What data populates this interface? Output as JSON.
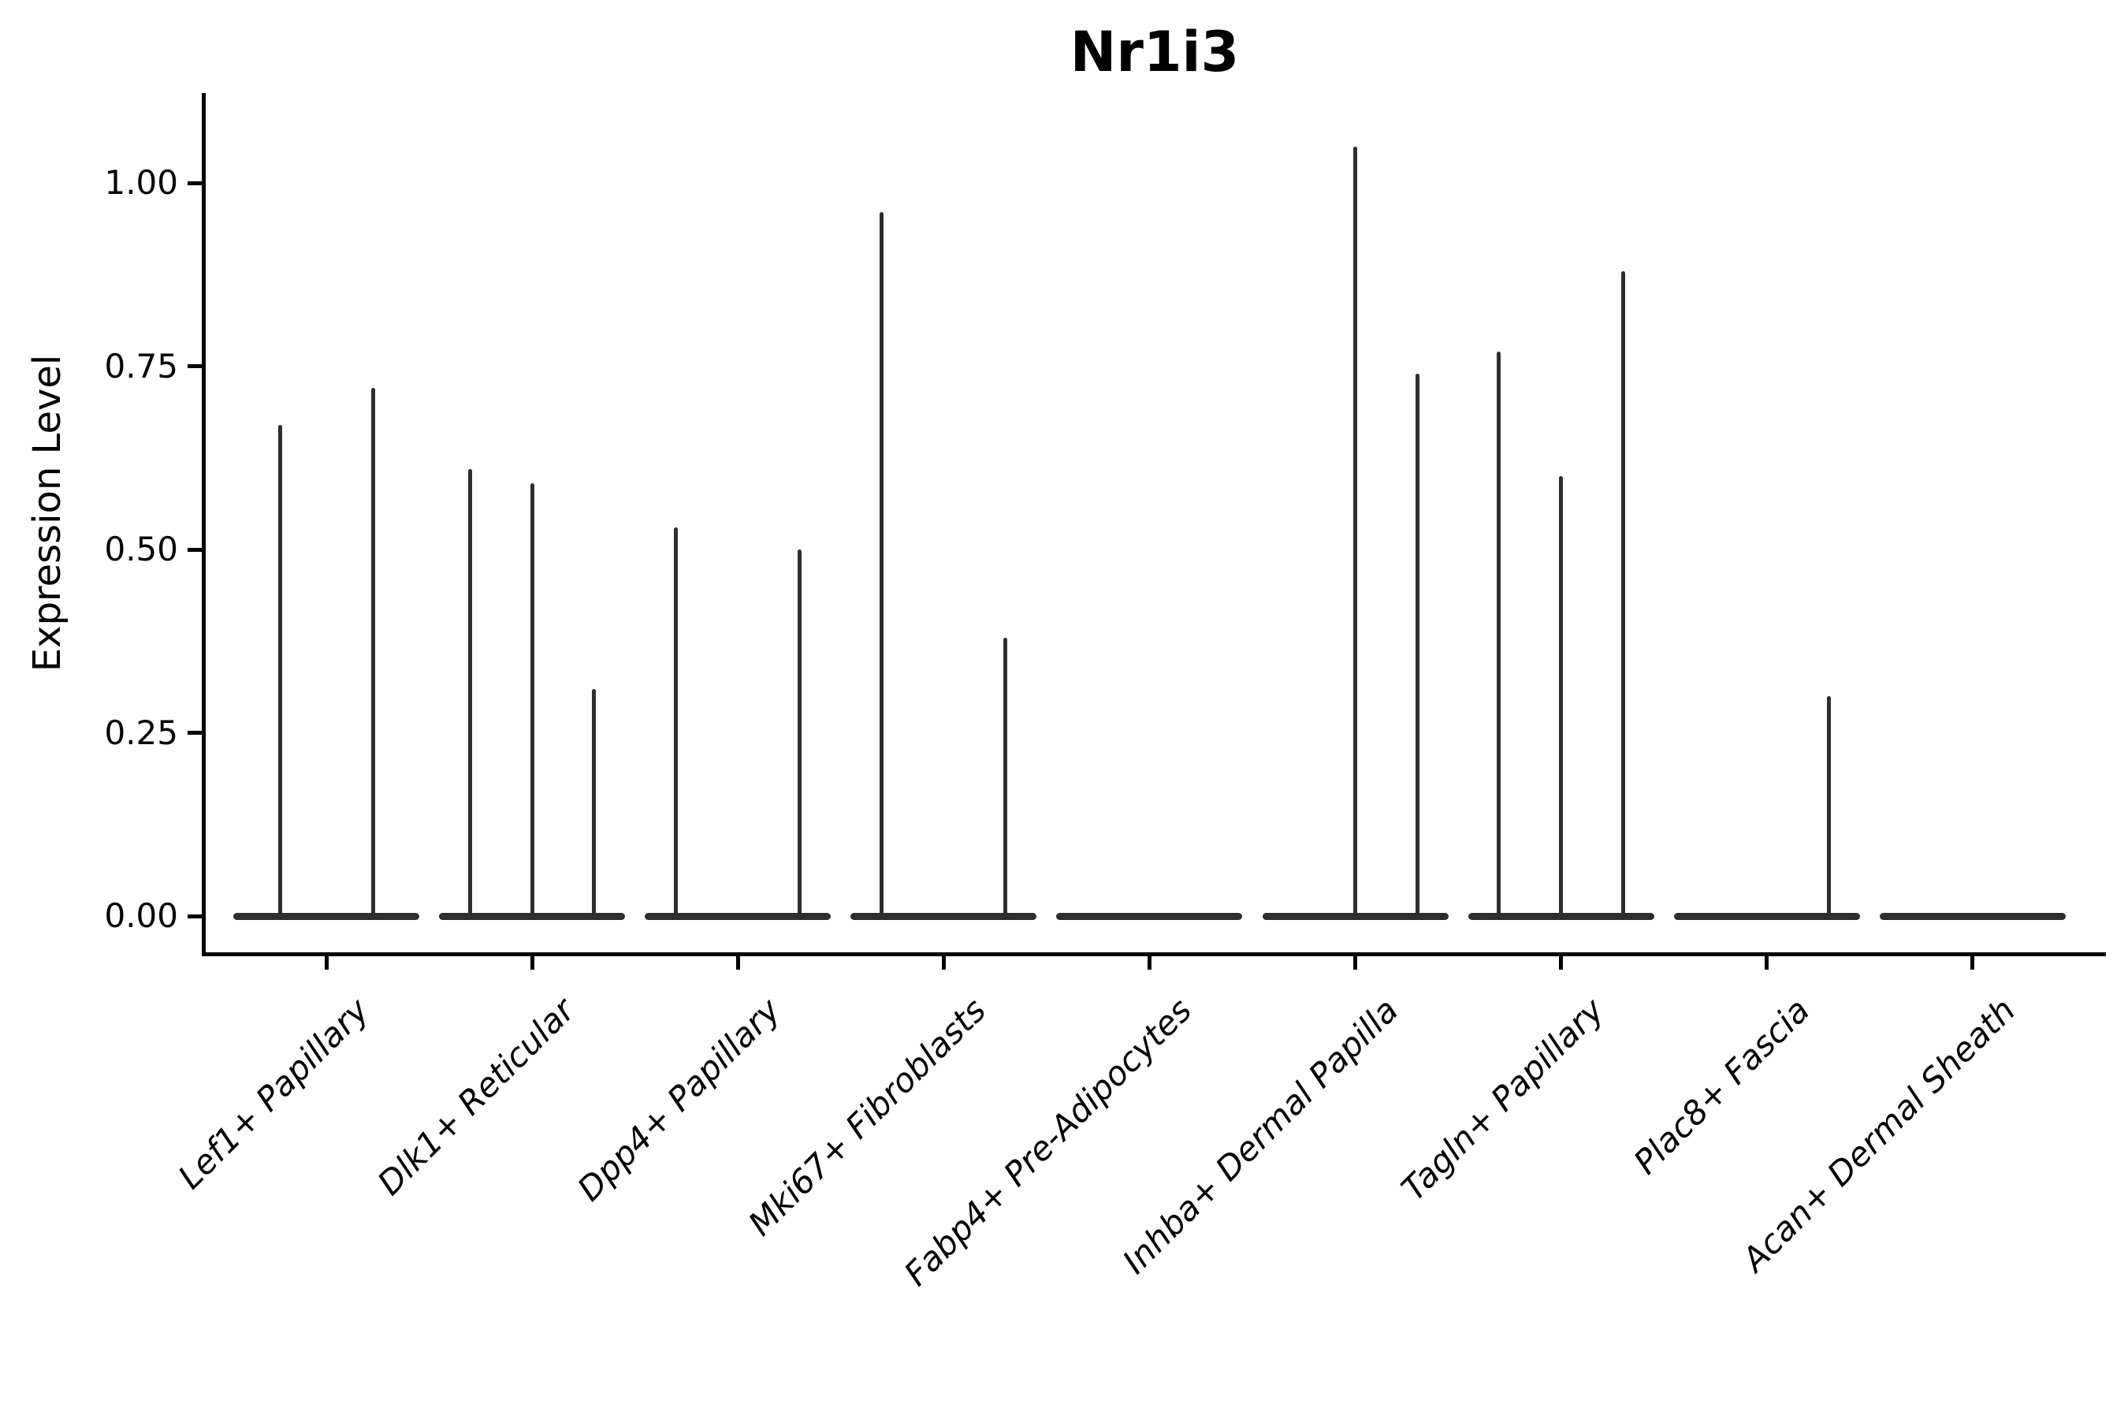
{
  "chart_data": {
    "type": "violin",
    "title": "Nr1i3",
    "ylabel": "Expression Level",
    "xlabel": "",
    "yticks": [
      0.0,
      0.25,
      0.5,
      0.75,
      1.0
    ],
    "ytick_labels": [
      "0.00",
      "0.25",
      "0.50",
      "0.75",
      "1.00"
    ],
    "ylim": [
      -0.05,
      1.12
    ],
    "grid": false,
    "legend_position": "none",
    "description": "Violin plot of Nr1i3 expression; violins are collapsed to a flat bar at 0 with thin spikes reaching the maximum expression value of each sub-violin.",
    "categories": [
      {
        "label": "Lef1+ Papillary",
        "violin_max_expression": [
          0.67,
          0.72
        ]
      },
      {
        "label": "Dlk1+ Reticular",
        "violin_max_expression": [
          0.61,
          0.59,
          0.31
        ]
      },
      {
        "label": "Dpp4+ Papillary",
        "violin_max_expression": [
          0.53,
          0,
          0.5
        ]
      },
      {
        "label": "Mki67+ Fibroblasts",
        "violin_max_expression": [
          0.96,
          0,
          0.38
        ]
      },
      {
        "label": "Fabp4+ Pre-Adipocytes",
        "violin_max_expression": [
          0,
          0,
          0
        ]
      },
      {
        "label": "Inhba+ Dermal Papilla",
        "violin_max_expression": [
          0,
          1.05,
          0.74
        ]
      },
      {
        "label": "Tagln+ Papillary",
        "violin_max_expression": [
          0.77,
          0.6,
          0.88
        ]
      },
      {
        "label": "Plac8+ Fascia",
        "violin_max_expression": [
          0,
          0,
          0.3
        ]
      },
      {
        "label": "Acan+ Dermal Sheath",
        "violin_max_expression": [
          0,
          0,
          0
        ]
      }
    ],
    "colors": {
      "line": "#000000",
      "violin": "#2e2e2e",
      "text": "#000000",
      "background": "#ffffff"
    }
  }
}
